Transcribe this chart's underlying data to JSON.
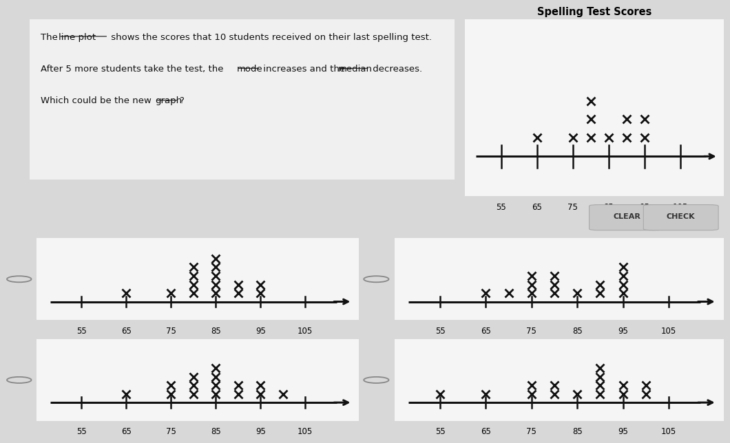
{
  "title_plot": "Spelling Test Scores",
  "original_data": {
    "title": "Spelling Test Scores",
    "points": [
      65,
      75,
      80,
      80,
      80,
      85,
      90,
      90,
      95,
      95
    ],
    "ticks": [
      55,
      65,
      75,
      85,
      95,
      105
    ]
  },
  "option_a": {
    "points": [
      65,
      75,
      80,
      80,
      80,
      80,
      85,
      85,
      85,
      85,
      85,
      90,
      90,
      95,
      95
    ],
    "ticks": [
      55,
      65,
      75,
      85,
      95,
      105
    ]
  },
  "option_b": {
    "points": [
      65,
      70,
      75,
      75,
      75,
      80,
      80,
      80,
      85,
      90,
      90,
      95,
      95,
      95,
      95
    ],
    "ticks": [
      55,
      65,
      75,
      85,
      95,
      105
    ]
  },
  "option_c": {
    "points": [
      65,
      75,
      75,
      80,
      80,
      80,
      85,
      85,
      85,
      85,
      90,
      90,
      95,
      95,
      100
    ],
    "ticks": [
      55,
      65,
      75,
      85,
      95,
      105
    ]
  },
  "option_d": {
    "points": [
      55,
      65,
      75,
      75,
      80,
      80,
      85,
      90,
      90,
      90,
      90,
      95,
      95,
      100,
      100
    ],
    "ticks": [
      55,
      65,
      75,
      85,
      95,
      105
    ]
  },
  "xlim": [
    48,
    112
  ],
  "bg_color": "#d8d8d8",
  "panel_color": "#f5f5f5",
  "marker_color": "#111111",
  "line_color": "#111111",
  "axis_label_fontsize": 8.5,
  "title_fontsize": 10.5
}
